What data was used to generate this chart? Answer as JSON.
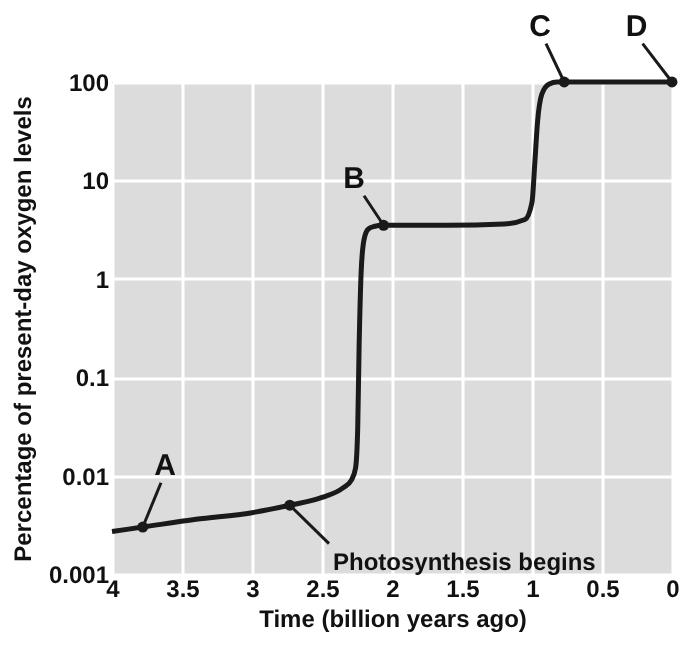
{
  "chart_data": {
    "type": "line",
    "xlabel": "Time (billion years ago)",
    "ylabel": "Percentage of present-day oxygen levels",
    "log": "y",
    "grid": true,
    "xlim": [
      4,
      0
    ],
    "xticks": [
      4,
      3.5,
      3,
      2.5,
      2,
      1.5,
      1,
      0.5,
      0
    ],
    "ylim": [
      0.001,
      100
    ],
    "yticks": [
      0.001,
      0.01,
      0.1,
      1,
      10,
      100
    ],
    "series": [
      {
        "type": "line",
        "color": "#1a1a1a",
        "marker": "none",
        "x": [
          4,
          3.78,
          3.4,
          3.0,
          2.73,
          2.5,
          2.35,
          2.29,
          2.26,
          2.245,
          2.235,
          2.22,
          2.2,
          2.17,
          2.13,
          2.06,
          1.6,
          1.2,
          1.05,
          1.0,
          0.98,
          0.96,
          0.93,
          0.88,
          0.82,
          0.77,
          0
        ],
        "values": [
          0.0027,
          0.003,
          0.0036,
          0.0042,
          0.005,
          0.006,
          0.0075,
          0.009,
          0.012,
          0.03,
          0.2,
          1.2,
          2.5,
          3.2,
          3.4,
          3.5,
          3.5,
          3.6,
          4,
          6,
          15,
          40,
          75,
          95,
          100,
          100,
          100
        ]
      },
      {
        "type": "scatter",
        "color": "#1a1a1a",
        "marker": "circle",
        "x": [
          3.78,
          2.73,
          2.06,
          0.77,
          0
        ],
        "values": [
          0.003,
          0.005,
          3.5,
          100,
          100
        ]
      }
    ],
    "annotations": [
      {
        "text": "A",
        "x": 3.78,
        "y": 0.003
      },
      {
        "text": "Photosynthesis begins",
        "x": 2.73,
        "y": 0.005
      },
      {
        "text": "B",
        "x": 2.06,
        "y": 3.5
      },
      {
        "text": "C",
        "x": 0.77,
        "y": 100
      },
      {
        "text": "D",
        "x": 0,
        "y": 100
      }
    ]
  }
}
